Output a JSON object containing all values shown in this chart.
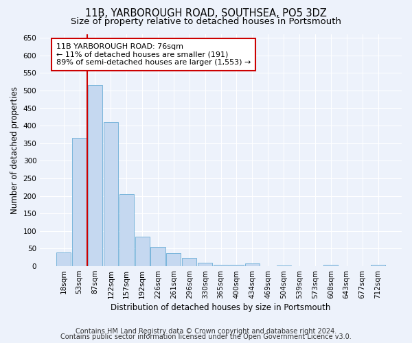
{
  "title": "11B, YARBOROUGH ROAD, SOUTHSEA, PO5 3DZ",
  "subtitle": "Size of property relative to detached houses in Portsmouth",
  "xlabel": "Distribution of detached houses by size in Portsmouth",
  "ylabel": "Number of detached properties",
  "footer_line1": "Contains HM Land Registry data © Crown copyright and database right 2024.",
  "footer_line2": "Contains public sector information licensed under the Open Government Licence v3.0.",
  "annotation_line1": "11B YARBOROUGH ROAD: 76sqm",
  "annotation_line2": "← 11% of detached houses are smaller (191)",
  "annotation_line3": "89% of semi-detached houses are larger (1,553) →",
  "bar_labels": [
    "18sqm",
    "53sqm",
    "87sqm",
    "122sqm",
    "157sqm",
    "192sqm",
    "226sqm",
    "261sqm",
    "296sqm",
    "330sqm",
    "365sqm",
    "400sqm",
    "434sqm",
    "469sqm",
    "504sqm",
    "539sqm",
    "573sqm",
    "608sqm",
    "643sqm",
    "677sqm",
    "712sqm"
  ],
  "bar_values": [
    40,
    365,
    515,
    410,
    205,
    85,
    55,
    38,
    23,
    10,
    5,
    5,
    7,
    0,
    3,
    0,
    0,
    4,
    0,
    0,
    4
  ],
  "bar_color": "#c5d8f0",
  "bar_edge_color": "#6baed6",
  "red_line_x": 1.5,
  "ylim": [
    0,
    660
  ],
  "yticks": [
    0,
    50,
    100,
    150,
    200,
    250,
    300,
    350,
    400,
    450,
    500,
    550,
    600,
    650
  ],
  "background_color": "#edf2fb",
  "grid_color": "#ffffff",
  "title_fontsize": 10.5,
  "subtitle_fontsize": 9.5,
  "axis_label_fontsize": 8.5,
  "tick_fontsize": 7.5,
  "annotation_fontsize": 8,
  "footer_fontsize": 7
}
